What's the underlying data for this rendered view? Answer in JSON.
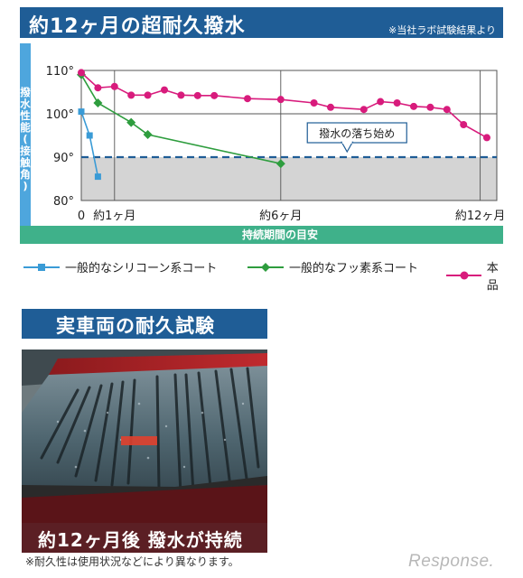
{
  "header": {
    "title": "約12ヶ月の超耐久撥水",
    "note": "※当社ラボ試験結果より"
  },
  "chart_data": {
    "type": "line",
    "ylabel": "撥水性能(接触角)",
    "xlabel": "持続期間の目安",
    "x_ticks": [
      {
        "label": "0",
        "x": 0
      },
      {
        "label": "約1ヶ月",
        "x": 1
      },
      {
        "label": "約6ヶ月",
        "x": 6
      },
      {
        "label": "約12ヶ月",
        "x": 12
      }
    ],
    "y_ticks": [
      {
        "label": "110°",
        "y": 110
      },
      {
        "label": "100°",
        "y": 100
      },
      {
        "label": "90°",
        "y": 90
      },
      {
        "label": "80°",
        "y": 80
      }
    ],
    "xlim": [
      0,
      12.5
    ],
    "ylim": [
      80,
      110
    ],
    "threshold": {
      "y": 90,
      "label": "撥水の落ち始め"
    },
    "series": [
      {
        "name": "一般的なシリコーン系コート",
        "color": "#3a9bd6",
        "marker": "square",
        "points": [
          [
            0,
            100.5
          ],
          [
            0.25,
            95
          ],
          [
            0.5,
            85.5
          ]
        ]
      },
      {
        "name": "一般的なフッ素系コート",
        "color": "#2e9d3e",
        "marker": "diamond",
        "points": [
          [
            0,
            109
          ],
          [
            0.5,
            102.5
          ],
          [
            1.5,
            98
          ],
          [
            2.0,
            95.2
          ],
          [
            6,
            88.5
          ]
        ]
      },
      {
        "name": "本品",
        "color": "#d81b7c",
        "marker": "circle",
        "points": [
          [
            0,
            109.5
          ],
          [
            0.5,
            106
          ],
          [
            1.0,
            106.3
          ],
          [
            1.5,
            104.3
          ],
          [
            2.0,
            104.3
          ],
          [
            2.5,
            105.5
          ],
          [
            3.0,
            104.3
          ],
          [
            3.5,
            104.2
          ],
          [
            4.0,
            104.2
          ],
          [
            5.0,
            103.5
          ],
          [
            6.0,
            103.3
          ],
          [
            7.0,
            102.5
          ],
          [
            7.5,
            101.5
          ],
          [
            8.5,
            101
          ],
          [
            9.0,
            102.8
          ],
          [
            9.5,
            102.5
          ],
          [
            10.0,
            101.7
          ],
          [
            10.5,
            101.5
          ],
          [
            11.0,
            101
          ],
          [
            11.5,
            97.5
          ],
          [
            12.2,
            94.5
          ]
        ]
      }
    ]
  },
  "section2": {
    "title": "実車両の耐久試験",
    "caption": "約12ヶ月後 撥水が持続"
  },
  "footnote": "※耐久性は使用状況などにより異なります。",
  "watermark": "Response."
}
